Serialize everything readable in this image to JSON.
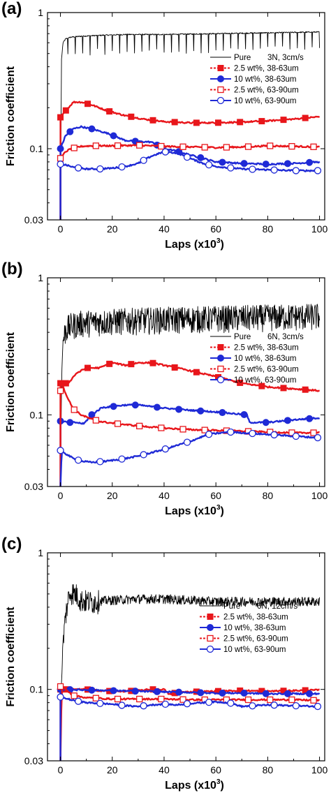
{
  "chart_data": [
    {
      "type": "line",
      "panel_label": "(a)",
      "xlabel": "Laps (x10",
      "xlabel_sup": "3",
      "xlabel_end": ")",
      "ylabel": "Friction coefficient",
      "xlim": [
        -5,
        102
      ],
      "ylim": [
        0.03,
        1
      ],
      "yscale": "log",
      "x_ticks": [
        0,
        20,
        40,
        60,
        80,
        100
      ],
      "y_ticks": [
        0.03,
        0.1,
        1
      ],
      "y_tick_labels": [
        "0.03",
        "0.1",
        "1"
      ],
      "legend_placement": "right",
      "legend_title": "3N, 3cm/s",
      "series": [
        {
          "name": "Pure",
          "color": "#000000",
          "style": "solid",
          "marker": "none",
          "noise": "spikes",
          "x": [
            0,
            0.4,
            1,
            2,
            4,
            8,
            15,
            25,
            40,
            60,
            80,
            100
          ],
          "y": [
            0.03,
            0.45,
            0.6,
            0.64,
            0.66,
            0.67,
            0.68,
            0.69,
            0.69,
            0.7,
            0.71,
            0.72
          ]
        },
        {
          "name": "2.5 wt%, 38-63um",
          "color": "#e8161b",
          "style": "solid",
          "marker": "square-filled",
          "x": [
            0,
            2,
            5,
            8,
            12,
            18,
            25,
            32,
            40,
            50,
            60,
            70,
            80,
            90,
            100
          ],
          "y": [
            0.17,
            0.19,
            0.22,
            0.22,
            0.21,
            0.19,
            0.175,
            0.165,
            0.158,
            0.155,
            0.155,
            0.157,
            0.16,
            0.165,
            0.172
          ]
        },
        {
          "name": "10 wt%, 38-63um",
          "color": "#1f2ad6",
          "style": "solid",
          "marker": "circle-filled",
          "x": [
            0,
            2,
            5,
            8,
            12,
            18,
            25,
            30,
            35,
            40,
            45,
            50,
            55,
            60,
            70,
            80,
            90,
            100
          ],
          "y": [
            0.1,
            0.125,
            0.14,
            0.145,
            0.14,
            0.13,
            0.115,
            0.113,
            0.112,
            0.1,
            0.096,
            0.09,
            0.085,
            0.08,
            0.078,
            0.077,
            0.078,
            0.08
          ]
        },
        {
          "name": "2.5 wt%, 63-90um",
          "color": "#e8161b",
          "style": "solid",
          "marker": "square-open",
          "x": [
            0,
            2,
            4,
            8,
            12,
            20,
            30,
            40,
            50,
            60,
            70,
            80,
            90,
            100
          ],
          "y": [
            0.085,
            0.095,
            0.1,
            0.104,
            0.105,
            0.105,
            0.106,
            0.104,
            0.103,
            0.102,
            0.103,
            0.105,
            0.104,
            0.103
          ]
        },
        {
          "name": "10 wt%, 63-90um",
          "color": "#1f2ad6",
          "style": "solid",
          "marker": "circle-open",
          "x": [
            0,
            2,
            5,
            10,
            15,
            20,
            25,
            30,
            35,
            40,
            45,
            50,
            55,
            60,
            70,
            80,
            90,
            100
          ],
          "y": [
            0.077,
            0.076,
            0.073,
            0.071,
            0.071,
            0.072,
            0.074,
            0.078,
            0.088,
            0.095,
            0.093,
            0.085,
            0.078,
            0.074,
            0.071,
            0.07,
            0.069,
            0.069
          ]
        }
      ]
    },
    {
      "type": "line",
      "panel_label": "(b)",
      "xlabel": "Laps (x10",
      "xlabel_sup": "3",
      "xlabel_end": ")",
      "ylabel": "Friction coefficient",
      "xlim": [
        -5,
        102
      ],
      "ylim": [
        0.03,
        1
      ],
      "yscale": "log",
      "x_ticks": [
        0,
        20,
        40,
        60,
        80,
        100
      ],
      "y_ticks": [
        0.03,
        0.1,
        1
      ],
      "y_tick_labels": [
        "0.03",
        "0.1",
        "1"
      ],
      "legend_placement": "right",
      "legend_title": "6N, 3cm/s",
      "series": [
        {
          "name": "Pure",
          "color": "#000000",
          "style": "solid",
          "marker": "none",
          "noise": "heavy",
          "x": [
            0,
            0.5,
            1,
            2,
            4,
            8,
            15,
            25,
            40,
            60,
            80,
            100
          ],
          "y": [
            0.03,
            0.2,
            0.35,
            0.42,
            0.45,
            0.47,
            0.48,
            0.49,
            0.5,
            0.51,
            0.52,
            0.53
          ]
        },
        {
          "name": "2.5 wt%, 38-63um",
          "color": "#e8161b",
          "style": "solid",
          "marker": "square-filled",
          "x": [
            0,
            3,
            6,
            10,
            15,
            20,
            25,
            30,
            35,
            40,
            50,
            60,
            70,
            80,
            90,
            100
          ],
          "y": [
            0.17,
            0.17,
            0.2,
            0.22,
            0.22,
            0.24,
            0.23,
            0.24,
            0.24,
            0.23,
            0.21,
            0.19,
            0.17,
            0.16,
            0.155,
            0.15
          ]
        },
        {
          "name": "10 wt%, 38-63um",
          "color": "#1f2ad6",
          "style": "solid",
          "marker": "circle-filled",
          "x": [
            0,
            3,
            6,
            9,
            12,
            16,
            20,
            25,
            30,
            40,
            50,
            60,
            72,
            73,
            80,
            90,
            100
          ],
          "y": [
            0.09,
            0.088,
            0.088,
            0.086,
            0.1,
            0.113,
            0.115,
            0.118,
            0.118,
            0.112,
            0.108,
            0.105,
            0.1,
            0.088,
            0.088,
            0.092,
            0.095
          ]
        },
        {
          "name": "2.5 wt%, 63-90um",
          "color": "#e8161b",
          "style": "solid",
          "marker": "square-open",
          "x": [
            0,
            1,
            3,
            5,
            8,
            12,
            16,
            20,
            25,
            30,
            40,
            50,
            60,
            70,
            80,
            90,
            100
          ],
          "y": [
            0.15,
            0.16,
            0.13,
            0.11,
            0.1,
            0.093,
            0.089,
            0.087,
            0.085,
            0.083,
            0.08,
            0.078,
            0.077,
            0.076,
            0.075,
            0.074,
            0.074
          ]
        },
        {
          "name": "10 wt%, 63-90um",
          "color": "#1f2ad6",
          "style": "solid",
          "marker": "circle-open",
          "x": [
            0,
            0.5,
            2,
            5,
            8,
            12,
            18,
            25,
            30,
            40,
            50,
            57,
            65,
            70,
            80,
            90,
            100
          ],
          "y": [
            0.03,
            0.055,
            0.052,
            0.048,
            0.046,
            0.045,
            0.046,
            0.048,
            0.05,
            0.056,
            0.064,
            0.072,
            0.075,
            0.074,
            0.072,
            0.07,
            0.068
          ]
        }
      ]
    },
    {
      "type": "line",
      "panel_label": "(c)",
      "xlabel": "Laps (x10",
      "xlabel_sup": "3",
      "xlabel_end": ")",
      "ylabel": "Friction coefficient",
      "xlim": [
        -5,
        102
      ],
      "ylim": [
        0.03,
        1
      ],
      "yscale": "log",
      "x_ticks": [
        0,
        20,
        40,
        60,
        80,
        100
      ],
      "y_ticks": [
        0.03,
        0.1,
        1
      ],
      "y_tick_labels": [
        "0.03",
        "0.1",
        "1"
      ],
      "legend_placement": "right",
      "legend_title": "6N, 12cm/s",
      "series": [
        {
          "name": "Pure",
          "color": "#000000",
          "style": "solid",
          "marker": "none",
          "noise": "medium",
          "x": [
            0,
            0.5,
            1,
            2,
            3,
            4,
            6,
            8,
            12,
            20,
            30,
            40,
            50,
            60,
            70,
            80,
            90,
            100
          ],
          "y": [
            0.08,
            0.12,
            0.22,
            0.35,
            0.46,
            0.52,
            0.5,
            0.45,
            0.44,
            0.45,
            0.46,
            0.46,
            0.45,
            0.44,
            0.44,
            0.44,
            0.44,
            0.44
          ]
        },
        {
          "name": "2.5 wt%, 38-63um",
          "color": "#e8161b",
          "style": "solid",
          "marker": "square-filled",
          "x": [
            0,
            5,
            10,
            15,
            20,
            25,
            30,
            35,
            40,
            42,
            45,
            50,
            60,
            70,
            80,
            90,
            100
          ],
          "y": [
            0.1,
            0.1,
            0.1,
            0.098,
            0.097,
            0.097,
            0.098,
            0.1,
            0.1,
            0.092,
            0.095,
            0.096,
            0.097,
            0.098,
            0.097,
            0.098,
            0.099
          ]
        },
        {
          "name": "10 wt%, 38-63um",
          "color": "#1f2ad6",
          "style": "solid",
          "marker": "circle-filled",
          "x": [
            0,
            10,
            20,
            30,
            40,
            50,
            60,
            70,
            80,
            90,
            100
          ],
          "y": [
            0.1,
            0.099,
            0.098,
            0.097,
            0.096,
            0.095,
            0.094,
            0.094,
            0.093,
            0.093,
            0.093
          ]
        },
        {
          "name": "2.5 wt%, 63-90um",
          "color": "#e8161b",
          "style": "solid",
          "marker": "square-open",
          "x": [
            0,
            0.5,
            5,
            10,
            15,
            20,
            30,
            40,
            50,
            60,
            70,
            80,
            90,
            100
          ],
          "y": [
            0.03,
            0.105,
            0.09,
            0.087,
            0.086,
            0.085,
            0.085,
            0.085,
            0.084,
            0.084,
            0.084,
            0.084,
            0.084,
            0.083
          ]
        },
        {
          "name": "10 wt%, 63-90um",
          "color": "#1f2ad6",
          "style": "solid",
          "marker": "circle-open",
          "x": [
            0,
            5,
            10,
            15,
            20,
            25,
            30,
            35,
            40,
            45,
            50,
            55,
            60,
            65,
            70,
            80,
            90,
            100
          ],
          "y": [
            0.088,
            0.083,
            0.08,
            0.079,
            0.078,
            0.076,
            0.075,
            0.077,
            0.078,
            0.077,
            0.079,
            0.08,
            0.081,
            0.08,
            0.075,
            0.077,
            0.076,
            0.075
          ]
        }
      ]
    }
  ]
}
